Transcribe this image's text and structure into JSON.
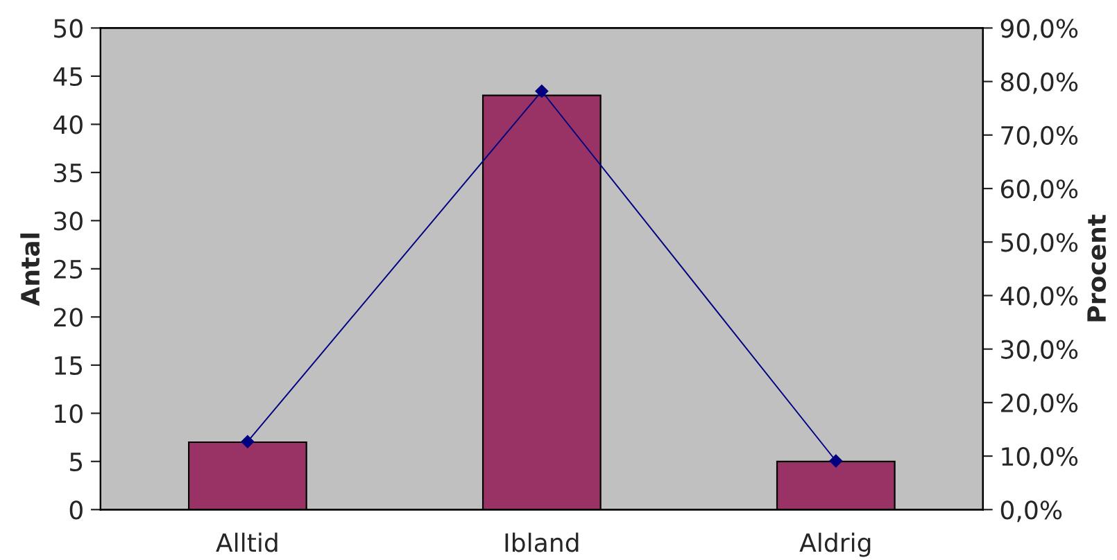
{
  "chart_data": {
    "type": "bar",
    "categories": [
      "Alltid",
      "Ibland",
      "Aldrig"
    ],
    "ylabel": "Antal",
    "y2label": "Procent",
    "ylim": [
      0,
      50
    ],
    "yticks": [
      0,
      5,
      10,
      15,
      20,
      25,
      30,
      35,
      40,
      45,
      50
    ],
    "y2lim": [
      0,
      90
    ],
    "y2ticks": [
      {
        "value": 0,
        "label": "0,0%"
      },
      {
        "value": 10,
        "label": "10,0%"
      },
      {
        "value": 20,
        "label": "20,0%"
      },
      {
        "value": 30,
        "label": "30,0%"
      },
      {
        "value": 40,
        "label": "40,0%"
      },
      {
        "value": 50,
        "label": "50,0%"
      },
      {
        "value": 60,
        "label": "60,0%"
      },
      {
        "value": 70,
        "label": "70,0%"
      },
      {
        "value": 80,
        "label": "80,0%"
      },
      {
        "value": 90,
        "label": "90,0%"
      }
    ],
    "grid": false,
    "legend": false,
    "marker": "diamond",
    "line_style": "solid",
    "series": [
      {
        "color": "#993366",
        "values": [
          7,
          43,
          5
        ]
      },
      {
        "type": "line",
        "axis": "y2",
        "color": "#000080",
        "values": [
          12.7,
          78.2,
          9.1
        ]
      }
    ]
  }
}
